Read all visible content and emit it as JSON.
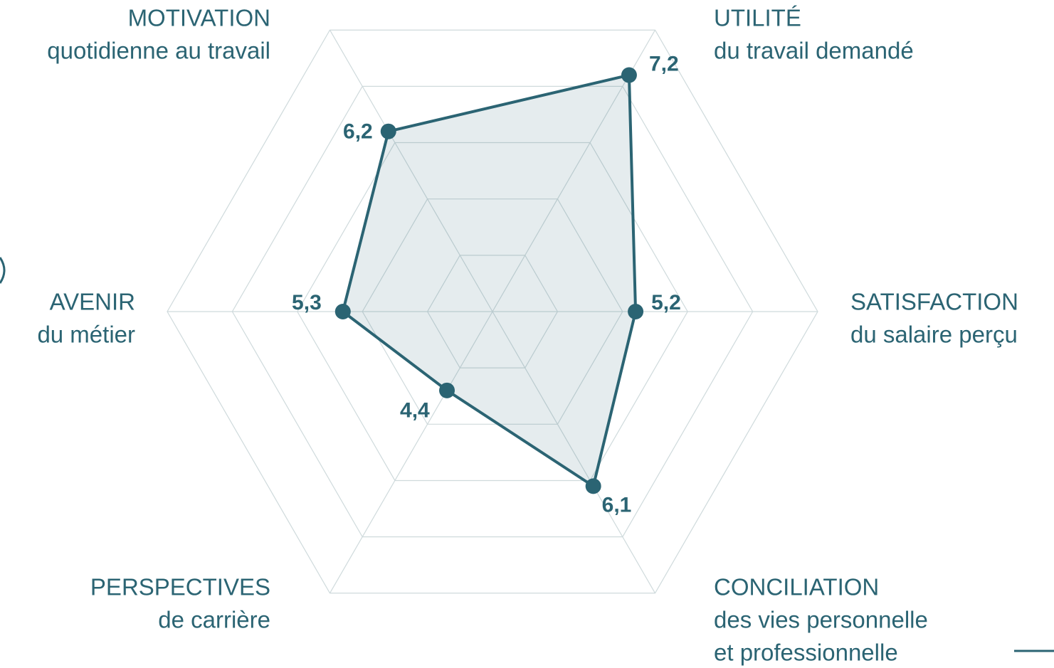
{
  "chart_data": {
    "type": "radar",
    "categories": [
      "UTILITÉ",
      "SATISFACTION",
      "CONCILIATION",
      "PERSPECTIVES",
      "AVENIR",
      "MOTIVATION"
    ],
    "subtitles": [
      [
        "du travail demandé"
      ],
      [
        "du salaire perçu"
      ],
      [
        "des vies personnelle",
        "et professionnelle"
      ],
      [
        "de carrière"
      ],
      [
        "du métier"
      ],
      [
        "quotidienne au travail"
      ]
    ],
    "values": [
      7.2,
      5.2,
      6.1,
      4.4,
      5.3,
      6.2
    ],
    "value_labels": [
      "7,2",
      "5,2",
      "6,1",
      "4,4",
      "5,3",
      "6,2"
    ],
    "color": "#2b6473",
    "rlim": [
      3,
      8
    ],
    "rticks": [
      4,
      5,
      6,
      7,
      8
    ],
    "grid": true
  }
}
